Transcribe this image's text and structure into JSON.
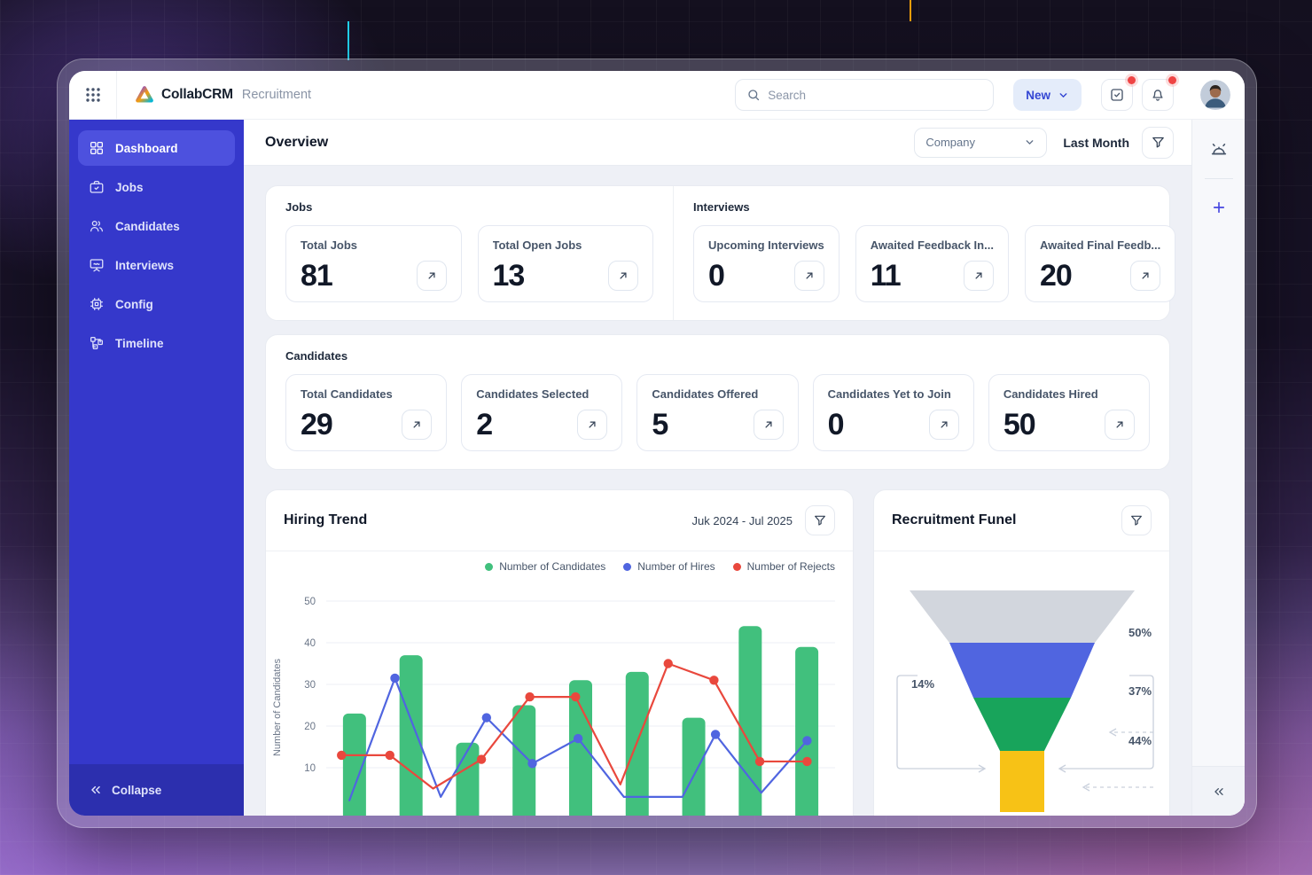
{
  "colors": {
    "sidebar": "#3538cb",
    "sidebar_active": "#4d51de",
    "accent_blue": "#3346d3",
    "bar_green": "#41c07d",
    "line_blue": "#5065e0",
    "line_red": "#e9483d",
    "funnel_gray": "#d2d6dd",
    "funnel_blue": "#5065e0",
    "funnel_green": "#18a45b",
    "funnel_yellow": "#f7c216",
    "badge_red": "#ef4444"
  },
  "topbar": {
    "brand": "CollabCRM",
    "module": "Recruitment",
    "search_placeholder": "Search",
    "new_button_label": "New"
  },
  "sidebar": {
    "items": [
      {
        "label": "Dashboard",
        "icon": "dashboard-icon",
        "active": true
      },
      {
        "label": "Jobs",
        "icon": "briefcase-icon",
        "active": false
      },
      {
        "label": "Candidates",
        "icon": "people-icon",
        "active": false
      },
      {
        "label": "Interviews",
        "icon": "presentation-icon",
        "active": false
      },
      {
        "label": "Config",
        "icon": "chip-icon",
        "active": false
      },
      {
        "label": "Timeline",
        "icon": "org-chart-icon",
        "active": false
      }
    ],
    "collapse_label": "Collapse"
  },
  "overview": {
    "title": "Overview",
    "company_filter_value": "Company",
    "period_value": "Last Month"
  },
  "stat_sections": [
    {
      "id": "jobs",
      "label": "Jobs",
      "cards": [
        {
          "title": "Total Jobs",
          "value": "81"
        },
        {
          "title": "Total Open Jobs",
          "value": "13"
        }
      ]
    },
    {
      "id": "interviews",
      "label": "Interviews",
      "cards": [
        {
          "title": "Upcoming Interviews",
          "value": "0"
        },
        {
          "title": "Awaited Feedback In...",
          "value": "11"
        },
        {
          "title": "Awaited Final Feedb...",
          "value": "20"
        }
      ]
    },
    {
      "id": "candidates",
      "label": "Candidates",
      "cards": [
        {
          "title": "Total Candidates",
          "value": "29"
        },
        {
          "title": "Candidates Selected",
          "value": "2"
        },
        {
          "title": "Candidates Offered",
          "value": "5"
        },
        {
          "title": "Candidates Yet to Join",
          "value": "0"
        },
        {
          "title": "Candidates Hired",
          "value": "50"
        }
      ]
    }
  ],
  "hiring_trend": {
    "title": "Hiring Trend",
    "period": "Juk 2024 - Jul 2025"
  },
  "funnel": {
    "title": "Recruitment Funel"
  },
  "chart_data": [
    {
      "type": "combo",
      "title": "Hiring Trend",
      "period": "Juk 2024 - Jul 2025",
      "ylabel": "Number of Candidates",
      "yticks": [
        50,
        40,
        30,
        20,
        10
      ],
      "ylim_visible": [
        10,
        50
      ],
      "grid": true,
      "legend_position": "top-right",
      "note": "x-axis category labels are cropped below the visible window edge",
      "bars": {
        "name": "Number of Candidates",
        "color": "#41c07d",
        "values": [
          23,
          37,
          16,
          25,
          31,
          33,
          22,
          44,
          39
        ]
      },
      "lines": [
        {
          "name": "Number of Hires",
          "color": "#5065e0",
          "points": [
            [
              0.045,
              2
            ],
            [
              0.135,
              31.5
            ],
            [
              0.225,
              3
            ],
            [
              0.315,
              22
            ],
            [
              0.405,
              11
            ],
            [
              0.495,
              17
            ],
            [
              0.585,
              3
            ],
            [
              0.7,
              3
            ],
            [
              0.765,
              18
            ],
            [
              0.855,
              4
            ],
            [
              0.945,
              16.5
            ]
          ]
        },
        {
          "name": "Number of Rejects",
          "color": "#e9483d",
          "points": [
            [
              0.03,
              13
            ],
            [
              0.125,
              13
            ],
            [
              0.21,
              5
            ],
            [
              0.305,
              12
            ],
            [
              0.4,
              27
            ],
            [
              0.49,
              27
            ],
            [
              0.578,
              6
            ],
            [
              0.672,
              35
            ],
            [
              0.762,
              31
            ],
            [
              0.852,
              11.5
            ],
            [
              0.945,
              11.5
            ]
          ]
        }
      ]
    },
    {
      "type": "funnel",
      "title": "Recruitment Funel",
      "stages": [
        {
          "name": "stage-1",
          "color": "#d2d6dd"
        },
        {
          "name": "stage-2",
          "color": "#5065e0"
        },
        {
          "name": "stage-3",
          "color": "#18a45b"
        },
        {
          "name": "stage-4",
          "color": "#f7c216"
        }
      ],
      "conversion_labels": [
        "50%",
        "37%",
        "44%"
      ],
      "overall_label": "14%"
    }
  ]
}
